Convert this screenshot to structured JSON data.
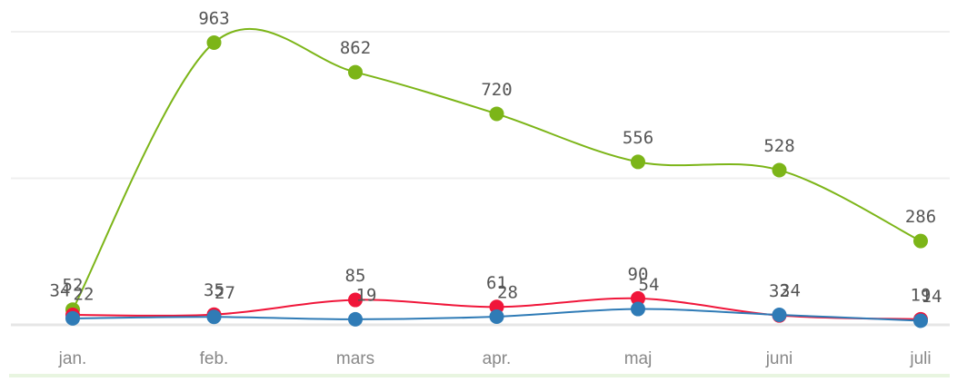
{
  "chart_data": {
    "type": "line",
    "categories": [
      "jan.",
      "feb.",
      "mars",
      "apr.",
      "maj",
      "juni",
      "juli"
    ],
    "series": [
      {
        "color": "#7cb518",
        "values": [
          52,
          963,
          862,
          720,
          556,
          528,
          286
        ]
      },
      {
        "color": "#f0163a",
        "values": [
          34,
          35,
          85,
          61,
          90,
          32,
          19
        ]
      },
      {
        "color": "#2f7bb6",
        "values": [
          22,
          27,
          19,
          28,
          54,
          34,
          14
        ]
      }
    ],
    "ylim": [
      0,
      1000
    ],
    "yticks": [
      0,
      500,
      1000
    ],
    "grid": true
  }
}
